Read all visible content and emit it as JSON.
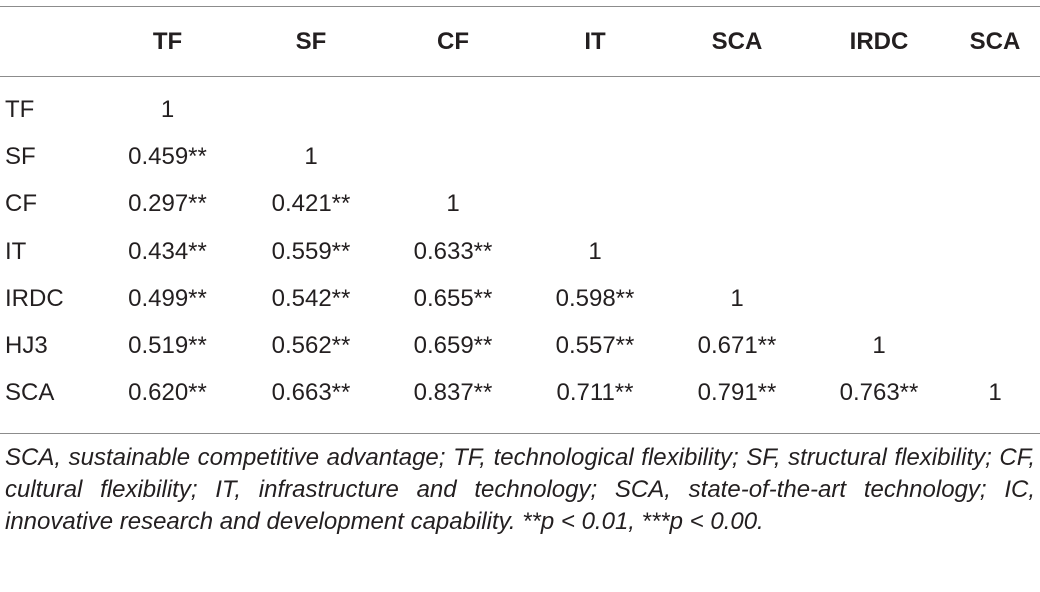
{
  "table": {
    "columns": [
      "",
      "TF",
      "SF",
      "CF",
      "IT",
      "SCA",
      "IRDC",
      "SCA"
    ],
    "rows": [
      {
        "label": "TF",
        "cells": [
          "1",
          "",
          "",
          "",
          "",
          "",
          ""
        ]
      },
      {
        "label": "SF",
        "cells": [
          "0.459**",
          "1",
          "",
          "",
          "",
          "",
          ""
        ]
      },
      {
        "label": "CF",
        "cells": [
          "0.297**",
          "0.421**",
          "1",
          "",
          "",
          "",
          ""
        ]
      },
      {
        "label": "IT",
        "cells": [
          "0.434**",
          "0.559**",
          "0.633**",
          "1",
          "",
          "",
          ""
        ]
      },
      {
        "label": "IRDC",
        "cells": [
          "0.499**",
          "0.542**",
          "0.655**",
          "0.598**",
          "1",
          "",
          ""
        ]
      },
      {
        "label": "HJ3",
        "cells": [
          "0.519**",
          "0.562**",
          "0.659**",
          "0.557**",
          "0.671**",
          "1",
          ""
        ]
      },
      {
        "label": "SCA",
        "cells": [
          "0.620**",
          "0.663**",
          "0.837**",
          "0.711**",
          "0.791**",
          "0.763**",
          "1"
        ]
      }
    ]
  },
  "footnote": "SCA, sustainable competitive advantage; TF, technological flexibility; SF, structural flexibility; CF, cultural flexibility; IT, infrastructure and technology; SCA, state-of-the-art technology; IC, innovative research and development capability. **p < 0.01, ***p < 0.00."
}
